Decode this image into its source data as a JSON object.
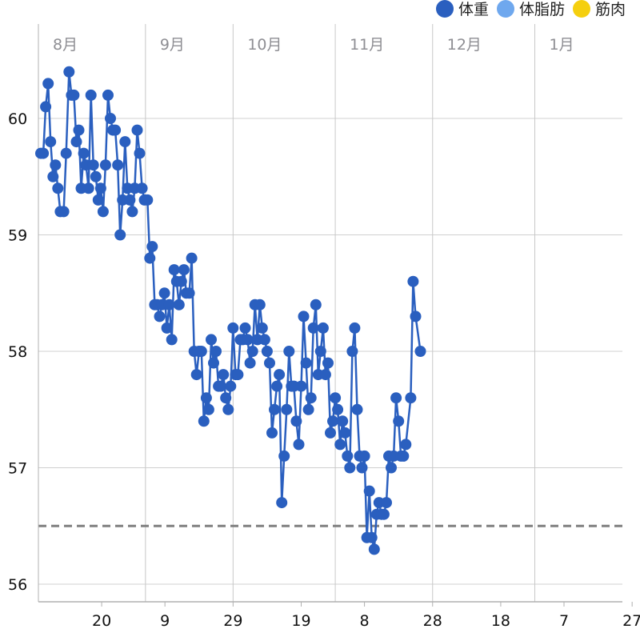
{
  "legend": [
    {
      "label": "体重",
      "color": "#2a5fbf"
    },
    {
      "label": "体脂肪",
      "color": "#6fa8ee"
    },
    {
      "label": "筋肉",
      "color": "#f5cf0f"
    }
  ],
  "chart_data": {
    "type": "line",
    "ylim": [
      55.85,
      60.95
    ],
    "y_ticks": [
      56,
      57,
      58,
      59,
      60
    ],
    "x_range": [
      0,
      120
    ],
    "x_ticks": [
      {
        "label": "20",
        "x": 13
      },
      {
        "label": "9",
        "x": 26
      },
      {
        "label": "29",
        "x": 40
      },
      {
        "label": "19",
        "x": 54
      },
      {
        "label": "8",
        "x": 67
      },
      {
        "label": "28",
        "x": 81
      },
      {
        "label": "18",
        "x": 95
      },
      {
        "label": "7",
        "x": 108
      },
      {
        "label": "27",
        "x": 122
      }
    ],
    "month_lines": [
      {
        "label": "8月",
        "x": 0
      },
      {
        "label": "9月",
        "x": 22
      },
      {
        "label": "10月",
        "x": 40
      },
      {
        "label": "11月",
        "x": 61
      },
      {
        "label": "12月",
        "x": 81
      },
      {
        "label": "1月",
        "x": 102
      }
    ],
    "goal_line": 56.5,
    "series": [
      {
        "name": "体重",
        "color": "#2a5fbf",
        "points": [
          [
            0.5,
            59.7
          ],
          [
            1.0,
            59.7
          ],
          [
            1.5,
            60.1
          ],
          [
            2.0,
            60.3
          ],
          [
            2.5,
            59.8
          ],
          [
            3.0,
            59.5
          ],
          [
            3.5,
            59.6
          ],
          [
            4.0,
            59.4
          ],
          [
            4.5,
            59.2
          ],
          [
            5.2,
            59.2
          ],
          [
            5.7,
            59.7
          ],
          [
            6.3,
            60.4
          ],
          [
            6.8,
            60.2
          ],
          [
            7.3,
            60.2
          ],
          [
            7.8,
            59.8
          ],
          [
            8.3,
            59.9
          ],
          [
            8.8,
            59.4
          ],
          [
            9.3,
            59.7
          ],
          [
            9.8,
            59.6
          ],
          [
            10.3,
            59.4
          ],
          [
            10.8,
            60.2
          ],
          [
            11.3,
            59.6
          ],
          [
            11.8,
            59.5
          ],
          [
            12.3,
            59.3
          ],
          [
            12.8,
            59.4
          ],
          [
            13.3,
            59.2
          ],
          [
            13.8,
            59.6
          ],
          [
            14.3,
            60.2
          ],
          [
            14.8,
            60.0
          ],
          [
            15.3,
            59.9
          ],
          [
            15.8,
            59.9
          ],
          [
            16.3,
            59.6
          ],
          [
            16.8,
            59.0
          ],
          [
            17.3,
            59.3
          ],
          [
            17.8,
            59.8
          ],
          [
            18.3,
            59.4
          ],
          [
            18.8,
            59.3
          ],
          [
            19.3,
            59.2
          ],
          [
            19.8,
            59.4
          ],
          [
            20.3,
            59.9
          ],
          [
            20.8,
            59.7
          ],
          [
            21.3,
            59.4
          ],
          [
            21.8,
            59.3
          ],
          [
            22.4,
            59.3
          ],
          [
            22.9,
            58.8
          ],
          [
            23.4,
            58.9
          ],
          [
            23.9,
            58.4
          ],
          [
            24.4,
            58.4
          ],
          [
            24.9,
            58.3
          ],
          [
            25.4,
            58.4
          ],
          [
            25.9,
            58.5
          ],
          [
            26.4,
            58.2
          ],
          [
            26.9,
            58.4
          ],
          [
            27.4,
            58.1
          ],
          [
            27.9,
            58.7
          ],
          [
            28.4,
            58.6
          ],
          [
            28.9,
            58.4
          ],
          [
            29.4,
            58.6
          ],
          [
            29.9,
            58.7
          ],
          [
            30.4,
            58.5
          ],
          [
            31.0,
            58.5
          ],
          [
            31.5,
            58.8
          ],
          [
            32.0,
            58.0
          ],
          [
            32.5,
            57.8
          ],
          [
            33.0,
            58.0
          ],
          [
            33.5,
            58.0
          ],
          [
            34.0,
            57.4
          ],
          [
            34.5,
            57.6
          ],
          [
            35.0,
            57.5
          ],
          [
            35.5,
            58.1
          ],
          [
            36.0,
            57.9
          ],
          [
            36.5,
            58.0
          ],
          [
            37.0,
            57.7
          ],
          [
            37.5,
            57.7
          ],
          [
            38.0,
            57.8
          ],
          [
            38.5,
            57.6
          ],
          [
            39.0,
            57.5
          ],
          [
            39.5,
            57.7
          ],
          [
            40.0,
            58.2
          ],
          [
            40.5,
            57.8
          ],
          [
            41.0,
            57.8
          ],
          [
            41.5,
            58.1
          ],
          [
            42.0,
            58.1
          ],
          [
            42.5,
            58.2
          ],
          [
            43.0,
            58.1
          ],
          [
            43.5,
            57.9
          ],
          [
            44.0,
            58.0
          ],
          [
            44.5,
            58.4
          ],
          [
            45.0,
            58.1
          ],
          [
            45.5,
            58.4
          ],
          [
            46.0,
            58.2
          ],
          [
            46.5,
            58.1
          ],
          [
            47.0,
            58.0
          ],
          [
            47.5,
            57.9
          ],
          [
            48.0,
            57.3
          ],
          [
            48.5,
            57.5
          ],
          [
            49.0,
            57.7
          ],
          [
            49.5,
            57.8
          ],
          [
            50.0,
            56.7
          ],
          [
            50.5,
            57.1
          ],
          [
            51.0,
            57.5
          ],
          [
            51.5,
            58.0
          ],
          [
            52.0,
            57.7
          ],
          [
            52.5,
            57.7
          ],
          [
            53.0,
            57.4
          ],
          [
            53.5,
            57.2
          ],
          [
            54.0,
            57.7
          ],
          [
            54.5,
            58.3
          ],
          [
            55.0,
            57.9
          ],
          [
            55.5,
            57.5
          ],
          [
            56.0,
            57.6
          ],
          [
            56.5,
            58.2
          ],
          [
            57.0,
            58.4
          ],
          [
            57.5,
            57.8
          ],
          [
            58.0,
            58.0
          ],
          [
            58.5,
            58.2
          ],
          [
            59.0,
            57.8
          ],
          [
            59.5,
            57.9
          ],
          [
            60.0,
            57.3
          ],
          [
            60.5,
            57.4
          ],
          [
            61.0,
            57.6
          ],
          [
            61.5,
            57.5
          ],
          [
            62.0,
            57.2
          ],
          [
            62.5,
            57.4
          ],
          [
            63.0,
            57.3
          ],
          [
            63.5,
            57.1
          ],
          [
            64.0,
            57.0
          ],
          [
            64.5,
            58.0
          ],
          [
            65.0,
            58.2
          ],
          [
            65.5,
            57.5
          ],
          [
            66.0,
            57.1
          ],
          [
            66.5,
            57.0
          ],
          [
            67.0,
            57.1
          ],
          [
            67.5,
            56.4
          ],
          [
            68.0,
            56.8
          ],
          [
            68.5,
            56.4
          ],
          [
            69.0,
            56.3
          ],
          [
            69.5,
            56.6
          ],
          [
            70.0,
            56.7
          ],
          [
            70.5,
            56.6
          ],
          [
            71.0,
            56.6
          ],
          [
            71.5,
            56.7
          ],
          [
            72.0,
            57.1
          ],
          [
            72.5,
            57.0
          ],
          [
            73.0,
            57.1
          ],
          [
            73.5,
            57.6
          ],
          [
            74.0,
            57.4
          ],
          [
            74.5,
            57.1
          ],
          [
            75.0,
            57.1
          ],
          [
            75.5,
            57.2
          ],
          [
            76.5,
            57.6
          ],
          [
            77.0,
            58.6
          ],
          [
            77.5,
            58.3
          ],
          [
            78.5,
            58.0
          ]
        ]
      }
    ]
  }
}
